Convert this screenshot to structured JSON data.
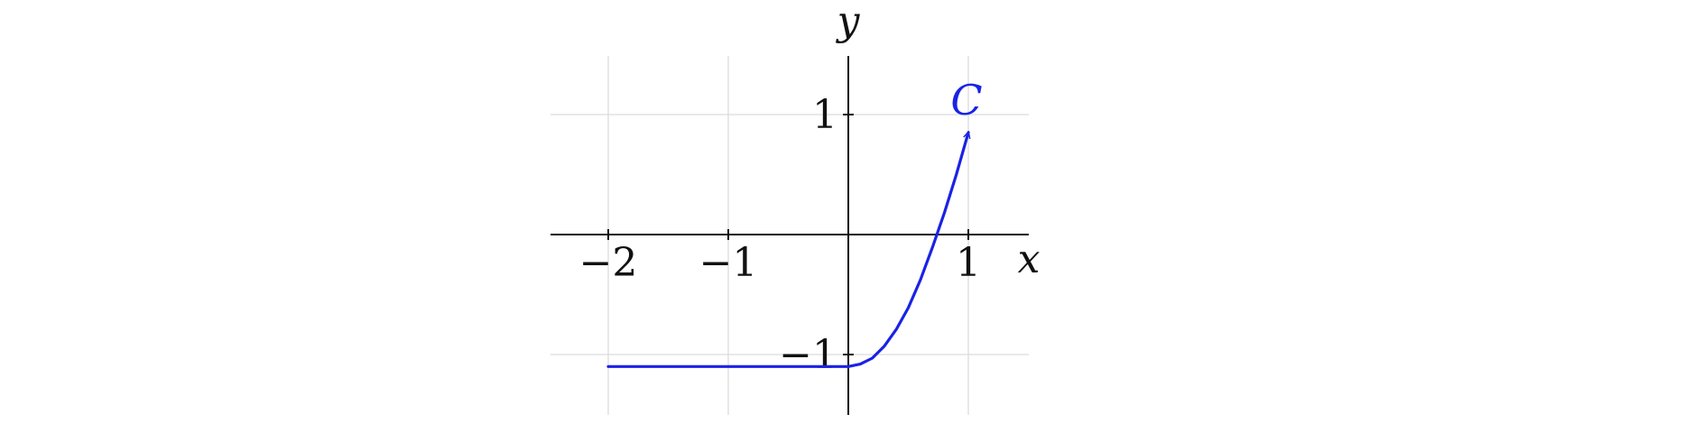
{
  "chart_data": {
    "type": "line",
    "xlabel": "x",
    "ylabel": "y",
    "xlim": [
      -2.5,
      1.5
    ],
    "ylim": [
      -1.5,
      1.5
    ],
    "x_ticks": [
      {
        "value": -2,
        "label": "−2"
      },
      {
        "value": -1,
        "label": "−1"
      },
      {
        "value": 1,
        "label": "1"
      }
    ],
    "y_ticks": [
      {
        "value": 1,
        "label": "1"
      },
      {
        "value": -1,
        "label": "−1"
      }
    ],
    "grid": true,
    "series": [
      {
        "name": "C",
        "color": "#1a22e6",
        "arrow_at_end": true,
        "x": [
          -2,
          -1.5,
          -1,
          -0.5,
          0,
          0.1,
          0.2,
          0.3,
          0.4,
          0.5,
          0.6,
          0.7,
          0.8,
          0.9,
          1.0
        ],
        "y": [
          -1.1,
          -1.1,
          -1.1,
          -1.1,
          -1.1,
          -1.08,
          -1.03,
          -0.93,
          -0.79,
          -0.61,
          -0.38,
          -0.11,
          0.18,
          0.5,
          0.85
        ]
      }
    ]
  }
}
